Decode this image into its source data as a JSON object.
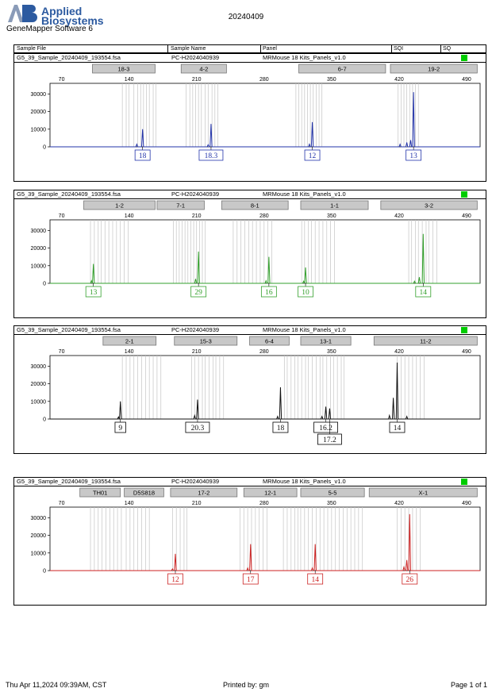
{
  "header": {
    "brand_line1": "Applied",
    "brand_line2": "Biosystems",
    "software": "GeneMapper Software 6",
    "date": "20240409"
  },
  "table_header": {
    "sample_file": "Sample File",
    "sample_name": "Sample Name",
    "panel": "Panel",
    "sqi": "SQI",
    "sq": "SQ"
  },
  "colors": {
    "blue": "#2233aa",
    "green": "#33a02c",
    "black": "#111111",
    "red": "#cc2222",
    "sq_box": "#00cc00"
  },
  "chart_data": [
    {
      "type": "line",
      "sample_file": "G5_39_Sample_20240409_193554.fsa",
      "sample_name": "PC-H2024040939",
      "panel": "MRMouse 18 Kits_Panels_v1.0",
      "color": "#2233aa",
      "x_ticks": [
        70,
        140,
        210,
        280,
        350,
        420,
        490
      ],
      "y_ticks": [
        0,
        10000,
        20000,
        30000
      ],
      "xlim": [
        58,
        504
      ],
      "ylim": [
        0,
        36000
      ],
      "markers": [
        {
          "label": "18-3",
          "from": 102,
          "to": 167
        },
        {
          "label": "4-2",
          "from": 194,
          "to": 241
        },
        {
          "label": "6-7",
          "from": 316,
          "to": 406
        },
        {
          "label": "19-2",
          "from": 411,
          "to": 501
        }
      ],
      "peaks": [
        {
          "x": 154,
          "y": 10000
        },
        {
          "x": 148,
          "y": 1500
        },
        {
          "x": 225,
          "y": 13000
        },
        {
          "x": 222,
          "y": 1200
        },
        {
          "x": 330,
          "y": 14000
        },
        {
          "x": 327,
          "y": 1500
        },
        {
          "x": 435,
          "y": 31000
        },
        {
          "x": 432,
          "y": 3800
        },
        {
          "x": 428,
          "y": 2500
        },
        {
          "x": 421,
          "y": 1500
        }
      ],
      "bins": [
        133,
        137,
        140,
        145,
        149,
        152,
        155,
        158,
        161,
        165,
        168,
        199,
        203,
        206,
        209,
        212,
        215,
        219,
        222,
        226,
        229,
        232,
        313,
        316,
        319,
        322,
        325,
        328,
        331,
        334,
        337,
        340,
        419,
        422,
        425,
        428,
        431,
        434,
        437,
        440
      ],
      "allele_labels": [
        {
          "x": 154,
          "text": "18"
        },
        {
          "x": 225,
          "text": "18.3"
        },
        {
          "x": 330,
          "text": "12"
        },
        {
          "x": 435,
          "text": "13"
        }
      ]
    },
    {
      "type": "line",
      "sample_file": "G5_39_Sample_20240409_193554.fsa",
      "sample_name": "PC-H2024040939",
      "panel": "MRMouse 18 Kits_Panels_v1.0",
      "color": "#33a02c",
      "x_ticks": [
        70,
        140,
        210,
        280,
        350,
        420,
        490
      ],
      "y_ticks": [
        0,
        10000,
        20000,
        30000
      ],
      "xlim": [
        58,
        504
      ],
      "ylim": [
        0,
        36000
      ],
      "markers": [
        {
          "label": "1-2",
          "from": 93,
          "to": 167
        },
        {
          "label": "7-1",
          "from": 169,
          "to": 218
        },
        {
          "label": "8-1",
          "from": 236,
          "to": 305
        },
        {
          "label": "1-1",
          "from": 318,
          "to": 388
        },
        {
          "label": "3-2",
          "from": 401,
          "to": 501
        }
      ],
      "peaks": [
        {
          "x": 103,
          "y": 11000
        },
        {
          "x": 101,
          "y": 1500
        },
        {
          "x": 212,
          "y": 18000
        },
        {
          "x": 209,
          "y": 2500
        },
        {
          "x": 285,
          "y": 15000
        },
        {
          "x": 282,
          "y": 1500
        },
        {
          "x": 323,
          "y": 9000
        },
        {
          "x": 321,
          "y": 1200
        },
        {
          "x": 445,
          "y": 28000
        },
        {
          "x": 441,
          "y": 3500
        },
        {
          "x": 436,
          "y": 1200
        }
      ],
      "bins": [
        100,
        104,
        108,
        111,
        115,
        119,
        123,
        127,
        131,
        135,
        139,
        186,
        189,
        192,
        195,
        198,
        201,
        204,
        207,
        210,
        213,
        216,
        219,
        248,
        252,
        256,
        260,
        264,
        268,
        272,
        276,
        280,
        284,
        288,
        319,
        322,
        326,
        329,
        333,
        337,
        341,
        345,
        349,
        353,
        430,
        433,
        437,
        440,
        444,
        448,
        451,
        455,
        459
      ],
      "allele_labels": [
        {
          "x": 103,
          "text": "13"
        },
        {
          "x": 212,
          "text": "29"
        },
        {
          "x": 285,
          "text": "16"
        },
        {
          "x": 323,
          "text": "10"
        },
        {
          "x": 445,
          "text": "14"
        }
      ]
    },
    {
      "type": "line",
      "sample_file": "G5_39_Sample_20240409_193554.fsa",
      "sample_name": "PC-H2024040939",
      "panel": "MRMouse 18 Kits_Panels_v1.0",
      "color": "#111111",
      "x_ticks": [
        70,
        140,
        210,
        280,
        350,
        420,
        490
      ],
      "y_ticks": [
        0,
        10000,
        20000,
        30000
      ],
      "xlim": [
        58,
        504
      ],
      "ylim": [
        0,
        36000
      ],
      "markers": [
        {
          "label": "2-1",
          "from": 113,
          "to": 168
        },
        {
          "label": "15-3",
          "from": 187,
          "to": 252
        },
        {
          "label": "6-4",
          "from": 265,
          "to": 306
        },
        {
          "label": "13-1",
          "from": 318,
          "to": 370
        },
        {
          "label": "11-2",
          "from": 394,
          "to": 501
        }
      ],
      "peaks": [
        {
          "x": 131,
          "y": 10000
        },
        {
          "x": 129,
          "y": 1200
        },
        {
          "x": 211,
          "y": 11000
        },
        {
          "x": 208,
          "y": 2000
        },
        {
          "x": 297,
          "y": 18000
        },
        {
          "x": 294,
          "y": 1500
        },
        {
          "x": 344,
          "y": 7000
        },
        {
          "x": 348,
          "y": 6000
        },
        {
          "x": 340,
          "y": 1500
        },
        {
          "x": 418,
          "y": 32000
        },
        {
          "x": 414,
          "y": 12000
        },
        {
          "x": 410,
          "y": 2000
        },
        {
          "x": 428,
          "y": 1500
        }
      ],
      "bins": [
        133,
        137,
        141,
        145,
        149,
        153,
        157,
        161,
        165,
        169,
        173,
        205,
        208,
        212,
        216,
        219,
        223,
        227,
        230,
        234,
        238,
        301,
        304,
        308,
        312,
        315,
        319,
        323,
        326,
        330,
        334,
        338,
        341,
        345,
        349,
        352,
        356,
        360,
        363,
        418,
        422,
        426,
        430,
        434,
        438,
        442,
        446
      ],
      "allele_labels": [
        {
          "x": 131,
          "text": "9"
        },
        {
          "x": 211,
          "text": "20.3"
        },
        {
          "x": 297,
          "text": "18"
        },
        {
          "x": 344,
          "text": "16.2"
        },
        {
          "x": 348,
          "text": "17.2"
        },
        {
          "x": 418,
          "text": "14"
        }
      ]
    },
    {
      "type": "line",
      "sample_file": "G5_39_Sample_20240409_193554.fsa",
      "sample_name": "PC-H2024040939",
      "panel": "MRMouse 18 Kits_Panels_v1.0",
      "color": "#cc2222",
      "x_ticks": [
        70,
        140,
        210,
        280,
        350,
        420,
        490
      ],
      "y_ticks": [
        0,
        10000,
        20000,
        30000
      ],
      "xlim": [
        58,
        504
      ],
      "ylim": [
        0,
        36000
      ],
      "markers": [
        {
          "label": "TH01",
          "from": 89,
          "to": 131
        },
        {
          "label": "D5S818",
          "from": 135,
          "to": 176
        },
        {
          "label": "17-2",
          "from": 183,
          "to": 252
        },
        {
          "label": "12-1",
          "from": 259,
          "to": 314
        },
        {
          "label": "5-5",
          "from": 318,
          "to": 384
        },
        {
          "label": "X-1",
          "from": 389,
          "to": 501
        }
      ],
      "peaks": [
        {
          "x": 188,
          "y": 9500
        },
        {
          "x": 185,
          "y": 1000
        },
        {
          "x": 266,
          "y": 15000
        },
        {
          "x": 263,
          "y": 1500
        },
        {
          "x": 333,
          "y": 15000
        },
        {
          "x": 330,
          "y": 1500
        },
        {
          "x": 431,
          "y": 32000
        },
        {
          "x": 428,
          "y": 6000
        },
        {
          "x": 425,
          "y": 2000
        }
      ],
      "bins": [
        100,
        104,
        108,
        112,
        116,
        120,
        124,
        128,
        132,
        137,
        141,
        145,
        149,
        153,
        157,
        161,
        185,
        189,
        193,
        197,
        200,
        255,
        259,
        263,
        267,
        271,
        275,
        279,
        283,
        300,
        304,
        308,
        312,
        315,
        318,
        322,
        326,
        330,
        334,
        338,
        342,
        346,
        350,
        354,
        358,
        362,
        366,
        370,
        374,
        378,
        382,
        418,
        422,
        426,
        430,
        434,
        438,
        442
      ],
      "allele_labels": [
        {
          "x": 188,
          "text": "12"
        },
        {
          "x": 266,
          "text": "17"
        },
        {
          "x": 333,
          "text": "14"
        },
        {
          "x": 431,
          "text": "26"
        }
      ]
    }
  ],
  "footer": {
    "datetime": "Thu Apr 11,2024 09:39AM, CST",
    "printed_by": "Printed by: gm",
    "page": "Page 1 of 1"
  }
}
